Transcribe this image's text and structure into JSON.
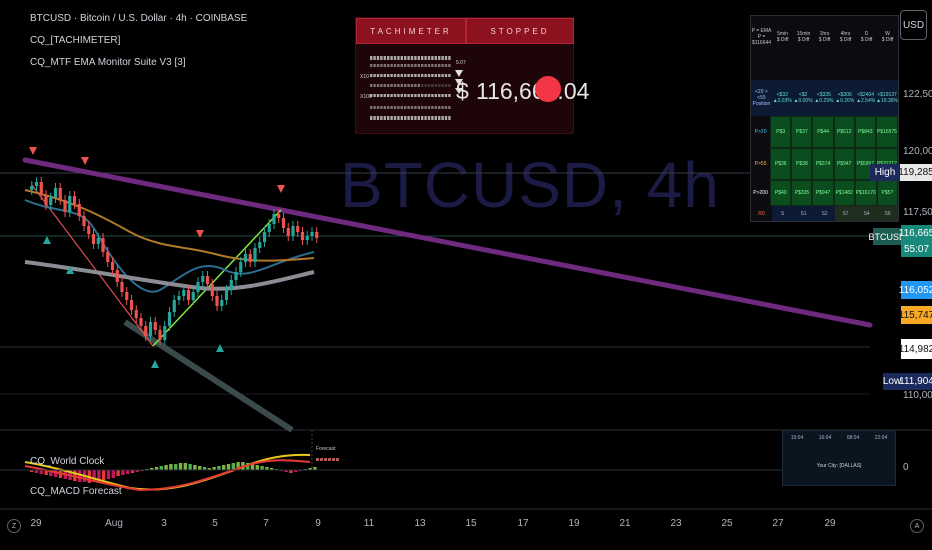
{
  "header": {
    "title": "BTCUSD · Bitcoin / U.S. Dollar · 4h · COINBASE",
    "indicator_1": "CQ_[TACHIMETER]",
    "indicator_2": "CQ_MTF EMA Monitor Suite V3 [3]"
  },
  "watermark": "BTCUSD, 4h",
  "tachimeter": {
    "title": "TACHIMETER",
    "status": "STOPPED",
    "price_symbol": "$",
    "price": "116,665.04",
    "status_color": "#f23645"
  },
  "mtf_table": {
    "headers": [
      "P = EMA\nP = $116644",
      "5min\n$ Diff",
      "15min\n$ Diff",
      "1hrs\n$ Diff",
      "4hrs\n$ Diff",
      "D\n$ Diff",
      "W\n$ Diff"
    ],
    "position_row": [
      "<20 > <55\nPosition",
      "<$32\n▲0.03%",
      "<$2\n▲0.00%",
      "<$335\n▲0.29%",
      "<$306\n▲0.26%",
      "<$2404\n▲2.54%",
      "<$19137\n▲19.36%"
    ],
    "rows": [
      {
        "label": "P>20",
        "values": [
          "P$3",
          "P$37",
          "P$44",
          "P$612",
          "P$843",
          "P$16575"
        ]
      },
      {
        "label": "P>55",
        "values": [
          "P$36",
          "P$38",
          "P$374",
          "P$947",
          "P$5997",
          "P$32712"
        ]
      },
      {
        "label": "P>200",
        "values": [
          "P$40",
          "P$335",
          "P$947",
          "P$1482",
          "P$16170",
          "P$5?"
        ]
      },
      {
        "label": "R0",
        "values": [
          "S",
          "S1",
          "S2",
          "S7",
          "S4",
          "S6"
        ]
      }
    ]
  },
  "price_axis": {
    "ticks": [
      "122,500",
      "120,000",
      "117,500",
      "110,000"
    ],
    "currency_button": "USD",
    "labels": {
      "high_tag": "High",
      "high_value": "119,285",
      "symbol_tag": "BTCUSD",
      "last_price": "116,665",
      "countdown": "55:07",
      "ema_blue": "116,052",
      "ema_orange": "115,747",
      "ema_white": "114,982",
      "low_tag": "Low",
      "low_value": "111,904"
    }
  },
  "lower_pane": {
    "indicator_1": "CQ_World Clock",
    "indicator_2": "CQ_MACD Forecast",
    "forecast_label": "Forecast",
    "zero_tick": "0",
    "world_clock": {
      "times": [
        "15:04",
        "16:04",
        "08:04",
        "22:04"
      ],
      "city_label": "Your City: [DALLAS]"
    }
  },
  "time_axis": {
    "ticks": [
      "29",
      "Aug",
      "3",
      "5",
      "7",
      "9",
      "11",
      "13",
      "15",
      "17",
      "19",
      "21",
      "23",
      "25",
      "27",
      "29"
    ],
    "left_button": "Z",
    "right_button": "A"
  },
  "colors": {
    "background": "#000000",
    "up_candle": "#26a69a",
    "down_candle": "#ef5350",
    "trendline": "#7b2c86",
    "ema_blue": "#2962ff",
    "ema_orange": "#f9a825",
    "ema_white": "#ffffff"
  }
}
